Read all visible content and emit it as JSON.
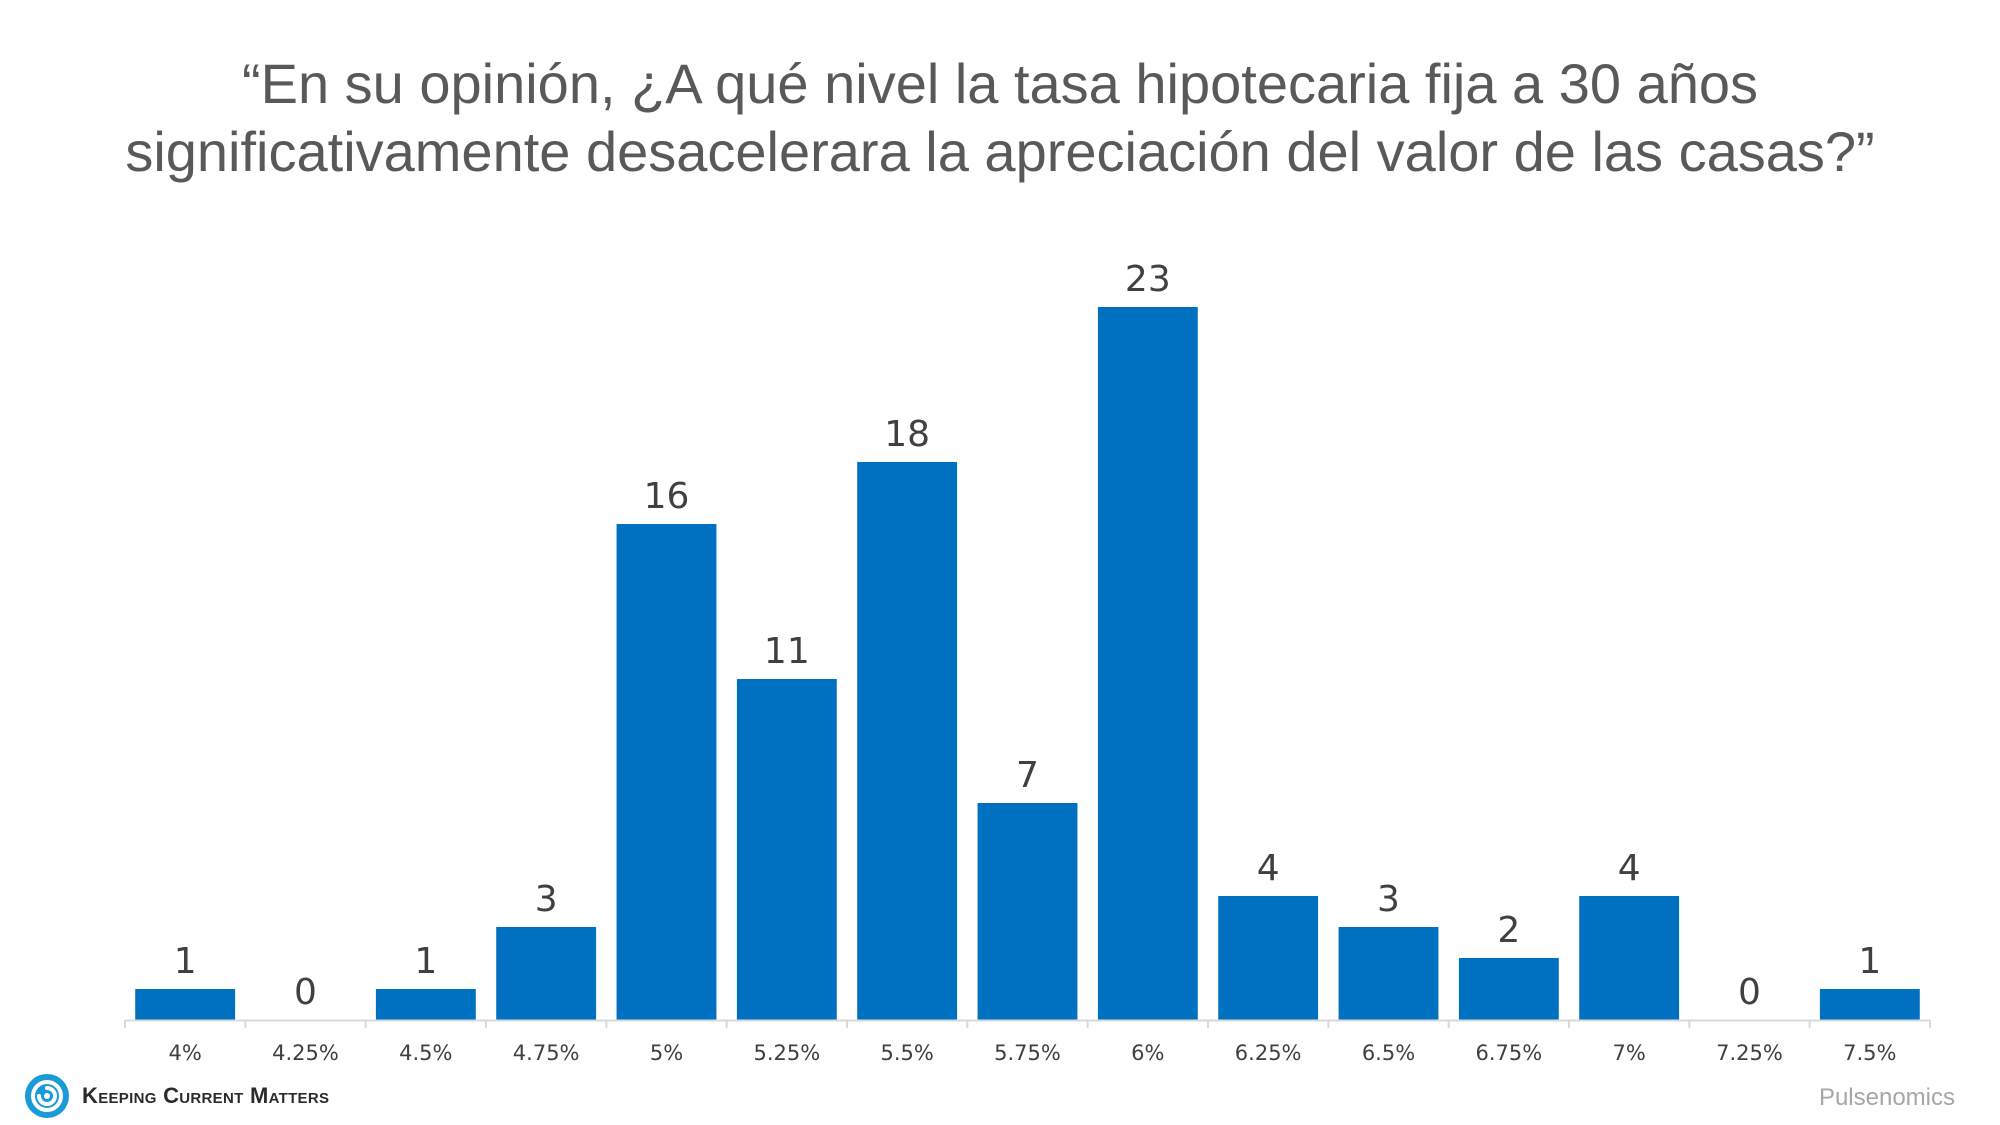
{
  "title_lines": [
    "“En su opinión, ¿A qué nivel la tasa hipotecaria fija a 30 años",
    "significativamente desacelerara la apreciación del valor de las casas?”"
  ],
  "chart_data": {
    "type": "bar",
    "title": "“En su opinión, ¿A qué nivel la tasa hipotecaria fija a 30 años significativamente desacelerara la apreciación del valor de las casas?”",
    "categories": [
      "4%",
      "4.25%",
      "4.5%",
      "4.75%",
      "5%",
      "5.25%",
      "5.5%",
      "5.75%",
      "6%",
      "6.25%",
      "6.5%",
      "6.75%",
      "7%",
      "7.25%",
      "7.5%"
    ],
    "values": [
      1,
      0,
      1,
      3,
      16,
      11,
      18,
      7,
      23,
      4,
      3,
      2,
      4,
      0,
      1
    ],
    "data_labels": true,
    "ylim": [
      0,
      23
    ],
    "grid": false,
    "legend": "none",
    "bar_color": "#0070C0"
  },
  "colors": {
    "bar": "#0070C0",
    "title": "#595959",
    "label": "#404040",
    "axis": "#d9d9d9"
  },
  "logo": {
    "text": "Keeping Current Matters",
    "icon": "kcm-swirl-logo-icon"
  },
  "source": "Pulsenomics"
}
